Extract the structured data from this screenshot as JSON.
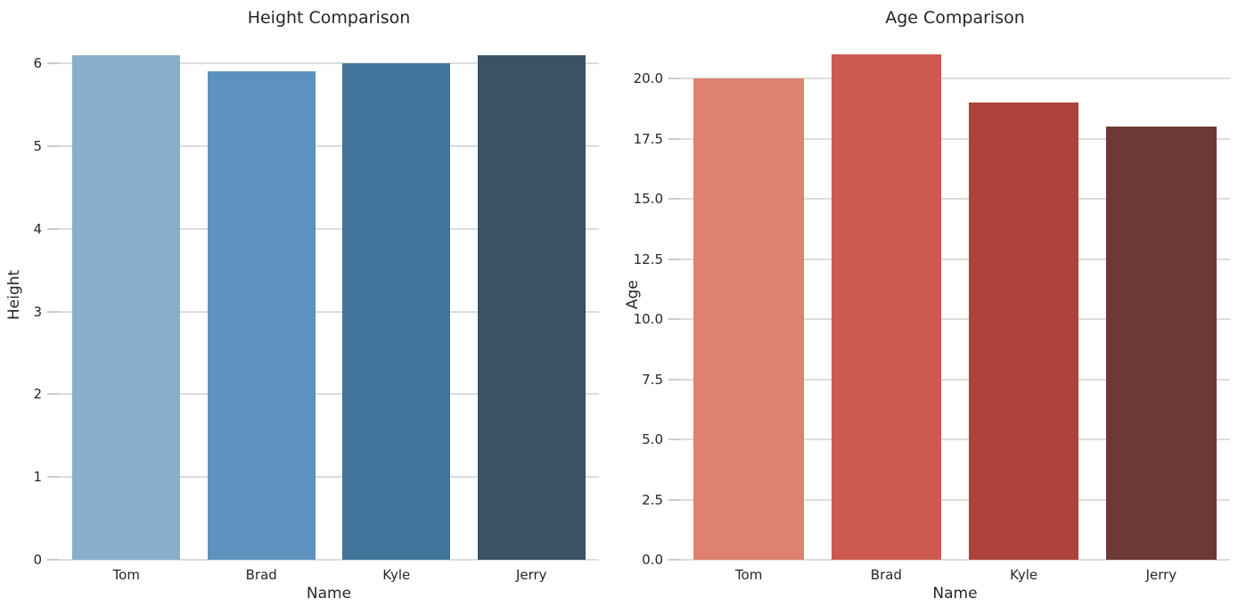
{
  "figure": {
    "background": "#ffffff",
    "style": {
      "text_color": "#262626",
      "grid_color": "#dcdcdc",
      "tick_mark_color": "#cbcbcb"
    }
  },
  "chart_data": [
    {
      "type": "bar",
      "title": "Height Comparison",
      "xlabel": "Name",
      "ylabel": "Height",
      "categories": [
        "Tom",
        "Brad",
        "Kyle",
        "Jerry"
      ],
      "values": [
        6.1,
        5.9,
        6.0,
        6.1
      ],
      "bar_colors": [
        "#89AECB",
        "#5C92BD",
        "#42759B",
        "#3B5266"
      ],
      "yticks": [
        0,
        1,
        2,
        3,
        4,
        5,
        6
      ],
      "ytick_labels": [
        "0",
        "1",
        "2",
        "3",
        "4",
        "5",
        "6"
      ],
      "ylim": [
        0,
        6.41
      ],
      "grid": true,
      "legend": "none"
    },
    {
      "type": "bar",
      "title": "Age Comparison",
      "xlabel": "Name",
      "ylabel": "Age",
      "categories": [
        "Tom",
        "Brad",
        "Kyle",
        "Jerry"
      ],
      "values": [
        20,
        21,
        19,
        18
      ],
      "bar_colors": [
        "#DE8171",
        "#CC5A50",
        "#AC423A",
        "#6E3834"
      ],
      "yticks": [
        0,
        2.5,
        5,
        7.5,
        10,
        12.5,
        15,
        17.5,
        20
      ],
      "ytick_labels": [
        "0.0",
        "2.5",
        "5.0",
        "7.5",
        "10.0",
        "12.5",
        "15.0",
        "17.5",
        "20.0"
      ],
      "ylim": [
        0,
        22.05
      ],
      "grid": true,
      "legend": "none"
    }
  ]
}
